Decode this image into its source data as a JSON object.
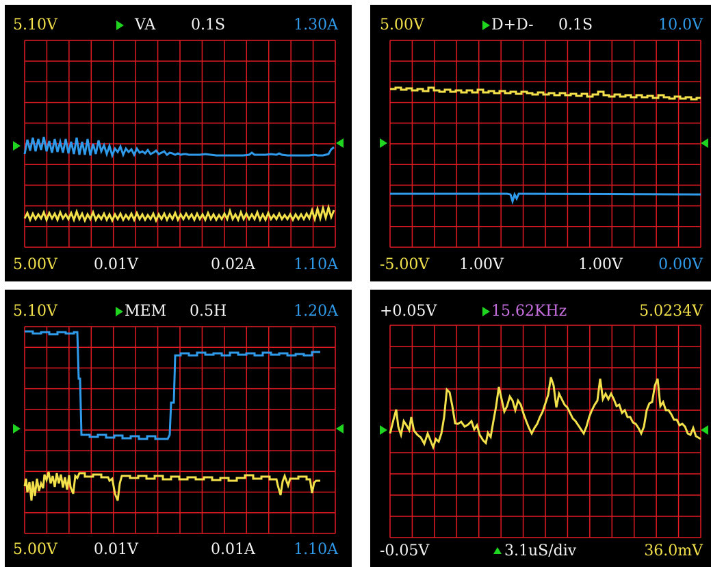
{
  "colors": {
    "grid": "#e21b23",
    "trace_yellow": "#f2e14a",
    "trace_blue": "#2f9bea",
    "marker_green": "#1fd51f",
    "background": "#000000"
  },
  "panels": [
    {
      "id": "va",
      "top_left": "5.10V",
      "mode_marker_icon": "play-triangle-icon",
      "mode": "VA",
      "timebase": "0.1S",
      "top_right": "1.30A",
      "bottom_left": "5.00V",
      "bottom_mid_left": "0.01V",
      "bottom_mid_right": "0.02A",
      "bottom_right": "1.10A"
    },
    {
      "id": "dpdm",
      "top_left": "5.00V",
      "mode_marker_icon": "play-triangle-icon",
      "mode": "D+D-",
      "timebase": "0.1S",
      "top_right": "10.0V",
      "bottom_left": "-5.00V",
      "bottom_mid_left": "1.00V",
      "bottom_mid_right": "1.00V",
      "bottom_right": "0.00V"
    },
    {
      "id": "mem",
      "top_left": "5.10V",
      "mode_marker_icon": "play-triangle-icon",
      "mode": "MEM",
      "timebase": "0.5H",
      "top_right": "1.20A",
      "bottom_left": "5.00V",
      "bottom_mid_left": "0.01V",
      "bottom_mid_right": "0.01A",
      "bottom_right": "1.10A"
    },
    {
      "id": "scope",
      "top_left": "+0.05V",
      "mode_marker_icon": "play-triangle-icon",
      "frequency": "15.62KHz",
      "top_right": "5.0234V",
      "bottom_left": "-0.05V",
      "timebase_icon": "up-arrow-icon",
      "timebase": "3.1uS/div",
      "bottom_right": "36.0mV"
    }
  ]
}
